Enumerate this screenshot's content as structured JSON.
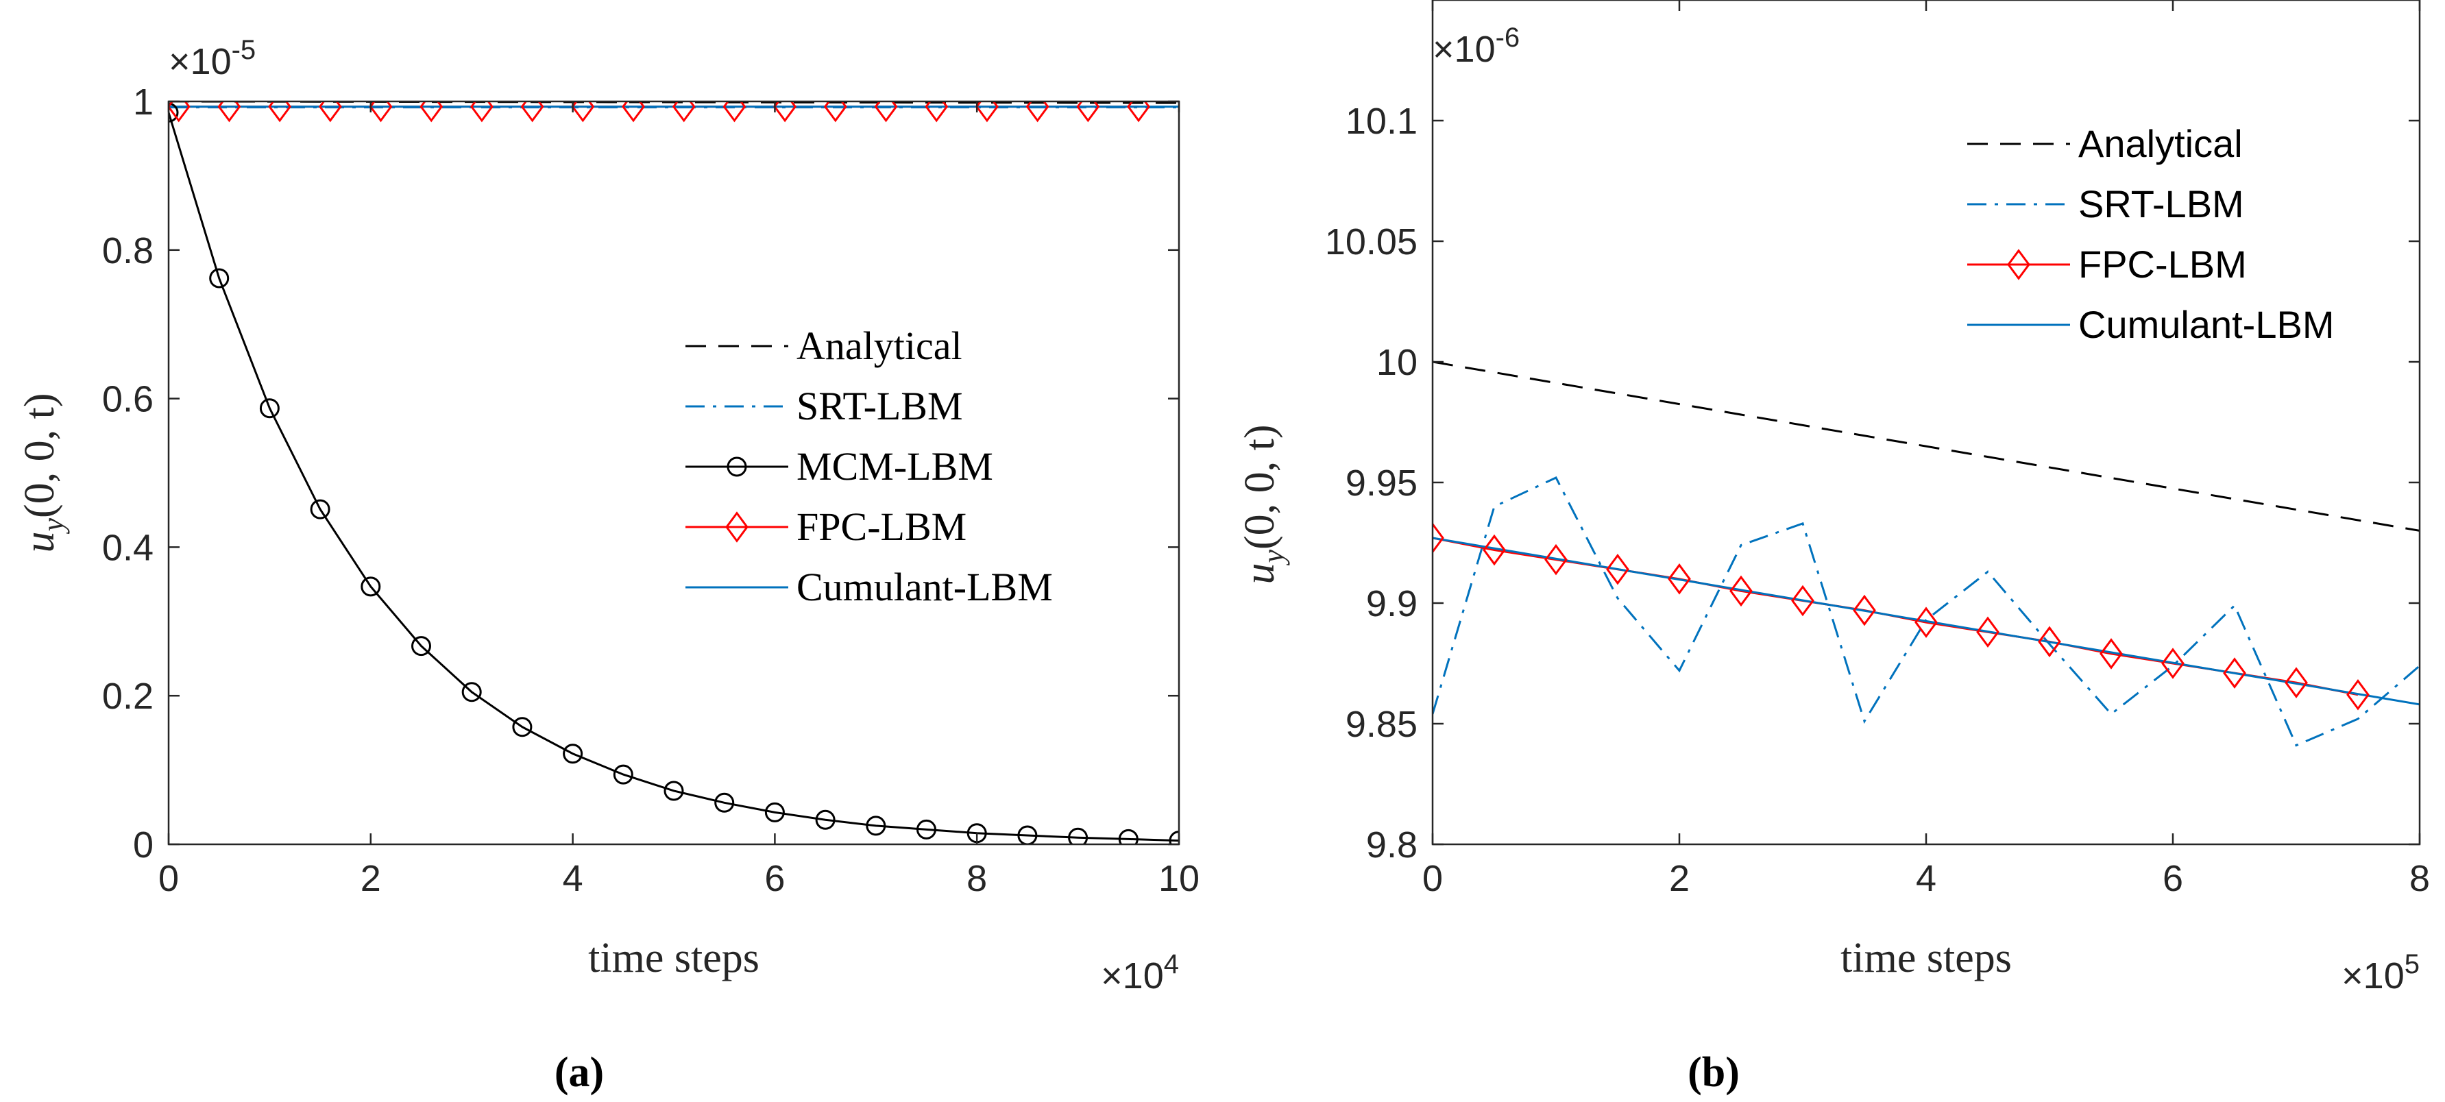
{
  "chart_data": [
    {
      "type": "line",
      "panel_caption": "(a)",
      "xlabel": "time steps",
      "ylabel": "u_y(0, 0, t)",
      "ylabel_parts": {
        "base": "u",
        "sub": "y",
        "args": "(0, 0, t)"
      },
      "x_exponent": "×10^4",
      "y_exponent": "×10^-5",
      "x_exponent_parts": {
        "mult": "×10",
        "pow": "4"
      },
      "y_exponent_parts": {
        "mult": "×10",
        "pow": "-5"
      },
      "xlim": [
        0,
        10
      ],
      "ylim": [
        0,
        1
      ],
      "xticks": [
        0,
        2,
        4,
        6,
        8,
        10
      ],
      "xtick_labels": [
        "0",
        "2",
        "4",
        "6",
        "8",
        "10"
      ],
      "yticks": [
        0,
        0.2,
        0.4,
        0.6,
        0.8,
        1
      ],
      "ytick_labels": [
        "0",
        "0.2",
        "0.4",
        "0.6",
        "0.8",
        "1"
      ],
      "legend_position": "center-right",
      "series": [
        {
          "name": "Analytical",
          "style": "dashed",
          "color": "#000000",
          "marker": "none",
          "x": [
            0,
            10
          ],
          "y": [
            1.0,
            0.998
          ]
        },
        {
          "name": "SRT-LBM",
          "style": "dashdot",
          "color": "#0072BD",
          "marker": "none",
          "x": [
            0,
            10
          ],
          "y": [
            0.992,
            0.992
          ]
        },
        {
          "name": "MCM-LBM",
          "style": "solid",
          "color": "#000000",
          "marker": "circle",
          "x": [
            0,
            0.5,
            1.0,
            1.5,
            2.0,
            2.5,
            3.0,
            3.5,
            4.0,
            4.5,
            5.0,
            5.5,
            6.0,
            6.5,
            7.0,
            7.5,
            8.0,
            8.5,
            9.0,
            9.5,
            10.0
          ],
          "y": [
            0.985,
            0.762,
            0.587,
            0.451,
            0.347,
            0.267,
            0.205,
            0.158,
            0.122,
            0.094,
            0.072,
            0.056,
            0.043,
            0.033,
            0.025,
            0.02,
            0.015,
            0.012,
            0.009,
            0.007,
            0.005
          ]
        },
        {
          "name": "FPC-LBM",
          "style": "solid",
          "color": "#FF0000",
          "marker": "diamond",
          "x": [
            0.1,
            0.6,
            1.1,
            1.6,
            2.1,
            2.6,
            3.1,
            3.6,
            4.1,
            4.6,
            5.1,
            5.6,
            6.1,
            6.6,
            7.1,
            7.6,
            8.1,
            8.6,
            9.1,
            9.6
          ],
          "y": [
            0.993,
            0.993,
            0.993,
            0.993,
            0.993,
            0.993,
            0.993,
            0.993,
            0.993,
            0.993,
            0.993,
            0.993,
            0.993,
            0.993,
            0.993,
            0.993,
            0.993,
            0.993,
            0.993,
            0.993
          ]
        },
        {
          "name": "Cumulant-LBM",
          "style": "solid",
          "color": "#0072BD",
          "marker": "none",
          "x": [
            0,
            10
          ],
          "y": [
            0.993,
            0.993
          ]
        }
      ]
    },
    {
      "type": "line",
      "panel_caption": "(b)",
      "xlabel": "time steps",
      "ylabel": "u_y(0, 0, t)",
      "ylabel_parts": {
        "base": "u",
        "sub": "y",
        "args": "(0, 0, t)"
      },
      "x_exponent": "×10^5",
      "y_exponent": "×10^-6",
      "x_exponent_parts": {
        "mult": "×10",
        "pow": "5"
      },
      "y_exponent_parts": {
        "mult": "×10",
        "pow": "-6"
      },
      "xlim": [
        0,
        8
      ],
      "ylim": [
        9.8,
        10.15
      ],
      "xticks": [
        0,
        2,
        4,
        6,
        8
      ],
      "xtick_labels": [
        "0",
        "2",
        "4",
        "6",
        "8"
      ],
      "yticks": [
        9.8,
        9.85,
        9.9,
        9.95,
        10,
        10.05,
        10.1
      ],
      "ytick_labels": [
        "9.8",
        "9.85",
        "9.9",
        "9.95",
        "10",
        "10.05",
        "10.1"
      ],
      "legend_position": "top-right",
      "series": [
        {
          "name": "Analytical",
          "style": "dashed",
          "color": "#000000",
          "marker": "none",
          "x": [
            0,
            8
          ],
          "y": [
            10.0,
            9.93
          ]
        },
        {
          "name": "SRT-LBM",
          "style": "dashdot",
          "color": "#0072BD",
          "marker": "none",
          "x": [
            0,
            0.5,
            1.0,
            1.5,
            2.0,
            2.5,
            3.0,
            3.5,
            4.0,
            4.5,
            5.0,
            5.5,
            6.0,
            6.5,
            7.0,
            7.5,
            8.0
          ],
          "y": [
            9.854,
            9.94,
            9.952,
            9.902,
            9.872,
            9.924,
            9.933,
            9.851,
            9.893,
            9.913,
            9.883,
            9.854,
            9.874,
            9.899,
            9.841,
            9.852,
            9.874
          ]
        },
        {
          "name": "FPC-LBM",
          "style": "solid",
          "color": "#FF0000",
          "marker": "diamond",
          "x": [
            0,
            0.5,
            1.0,
            1.5,
            2.0,
            2.5,
            3.0,
            3.5,
            4.0,
            4.5,
            5.0,
            5.5,
            6.0,
            6.5,
            7.0,
            7.5
          ],
          "y": [
            9.927,
            9.922,
            9.918,
            9.914,
            9.91,
            9.905,
            9.901,
            9.897,
            9.892,
            9.888,
            9.884,
            9.879,
            9.875,
            9.871,
            9.867,
            9.862
          ]
        },
        {
          "name": "Cumulant-LBM",
          "style": "solid",
          "color": "#0072BD",
          "marker": "none",
          "x": [
            0,
            8
          ],
          "y": [
            9.927,
            9.858
          ]
        }
      ]
    }
  ]
}
